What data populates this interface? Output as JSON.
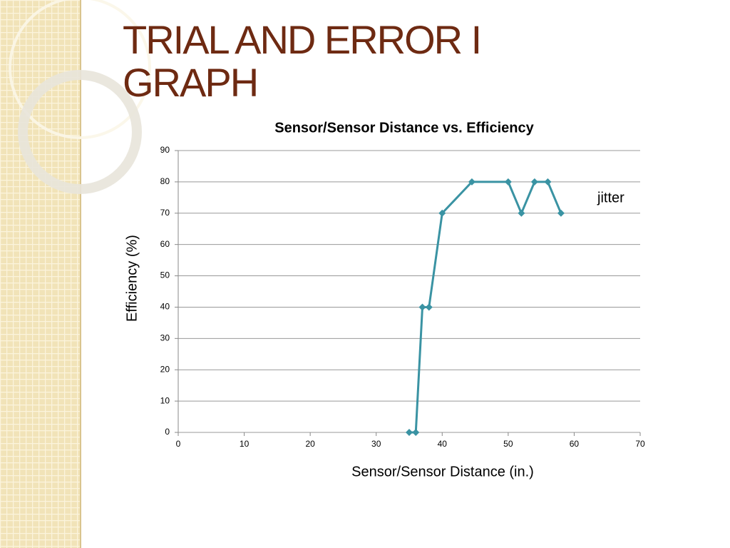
{
  "slide_title": "TRIAL AND ERROR I GRAPH",
  "chart_data": {
    "type": "line",
    "title": "Sensor/Sensor Distance vs. Efficiency",
    "x_label": "Sensor/Sensor Distance (in.)",
    "y_label": "Efficiency (%)",
    "annotation": "jitter",
    "x": [
      35,
      36,
      37,
      38,
      40,
      44.5,
      50,
      52,
      54,
      56,
      58
    ],
    "series": [
      {
        "color": "#3a93a3",
        "values": [
          0,
          0,
          40,
          40,
          70,
          80,
          80,
          70,
          80,
          80,
          70
        ]
      }
    ],
    "xlim": [
      0,
      70
    ],
    "xticks": [
      0,
      10,
      20,
      30,
      40,
      50,
      60,
      70
    ],
    "ylim": [
      0,
      90
    ],
    "yticks": [
      0,
      10,
      20,
      30,
      40,
      50,
      60,
      70,
      80,
      90
    ],
    "grid": true
  }
}
